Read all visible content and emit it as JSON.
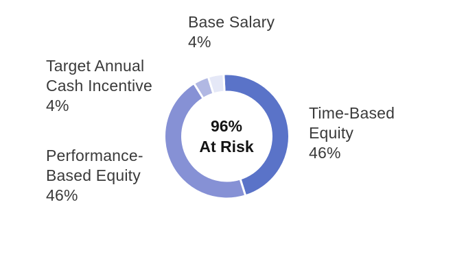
{
  "chart_data": {
    "type": "pie",
    "subtype": "donut",
    "title": "",
    "legend": "none",
    "direction": "clockwise",
    "start_angle_deg": -3,
    "hole_ratio": 0.71,
    "slice_border_color": "#ffffff",
    "background_color": "#ffffff",
    "center_label": "96%\nAt Risk",
    "slices": [
      {
        "label": "Time-Based Equity",
        "value": 46,
        "pct_label": "46%",
        "color": "#5A73C8",
        "label_lines": "Time-Based\nEquity\n46%"
      },
      {
        "label": "Performance-Based Equity",
        "value": 46,
        "pct_label": "46%",
        "color": "#8691D5",
        "label_lines": "Performance-\nBased Equity\n46%"
      },
      {
        "label": "Target Annual Cash Incentive",
        "value": 4,
        "pct_label": "4%",
        "color": "#B1B8E3",
        "label_lines": "Target Annual\nCash Incentive\n4%"
      },
      {
        "label": "Base Salary",
        "value": 4,
        "pct_label": "4%",
        "color": "#E5E8F7",
        "label_lines": "Base Salary\n4%"
      }
    ]
  }
}
